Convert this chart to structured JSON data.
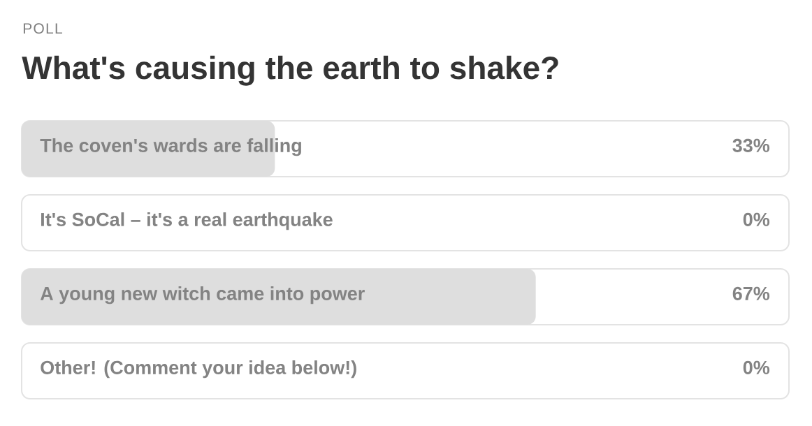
{
  "chart_data": {
    "type": "bar",
    "orientation": "horizontal",
    "title": "What's causing the earth to shake?",
    "annotations": [
      "POLL"
    ],
    "categories": [
      "The coven's wards are falling",
      "It's SoCal – it's a real earthquake",
      "A young new witch came into power",
      "Other! (Comment your idea below!)"
    ],
    "values": [
      33,
      0,
      67,
      0
    ],
    "color": "#dedede",
    "value_labels": [
      "33%",
      "0%",
      "67%",
      "0%"
    ],
    "xlim": [
      0,
      100
    ],
    "tick_labels": "y"
  }
}
